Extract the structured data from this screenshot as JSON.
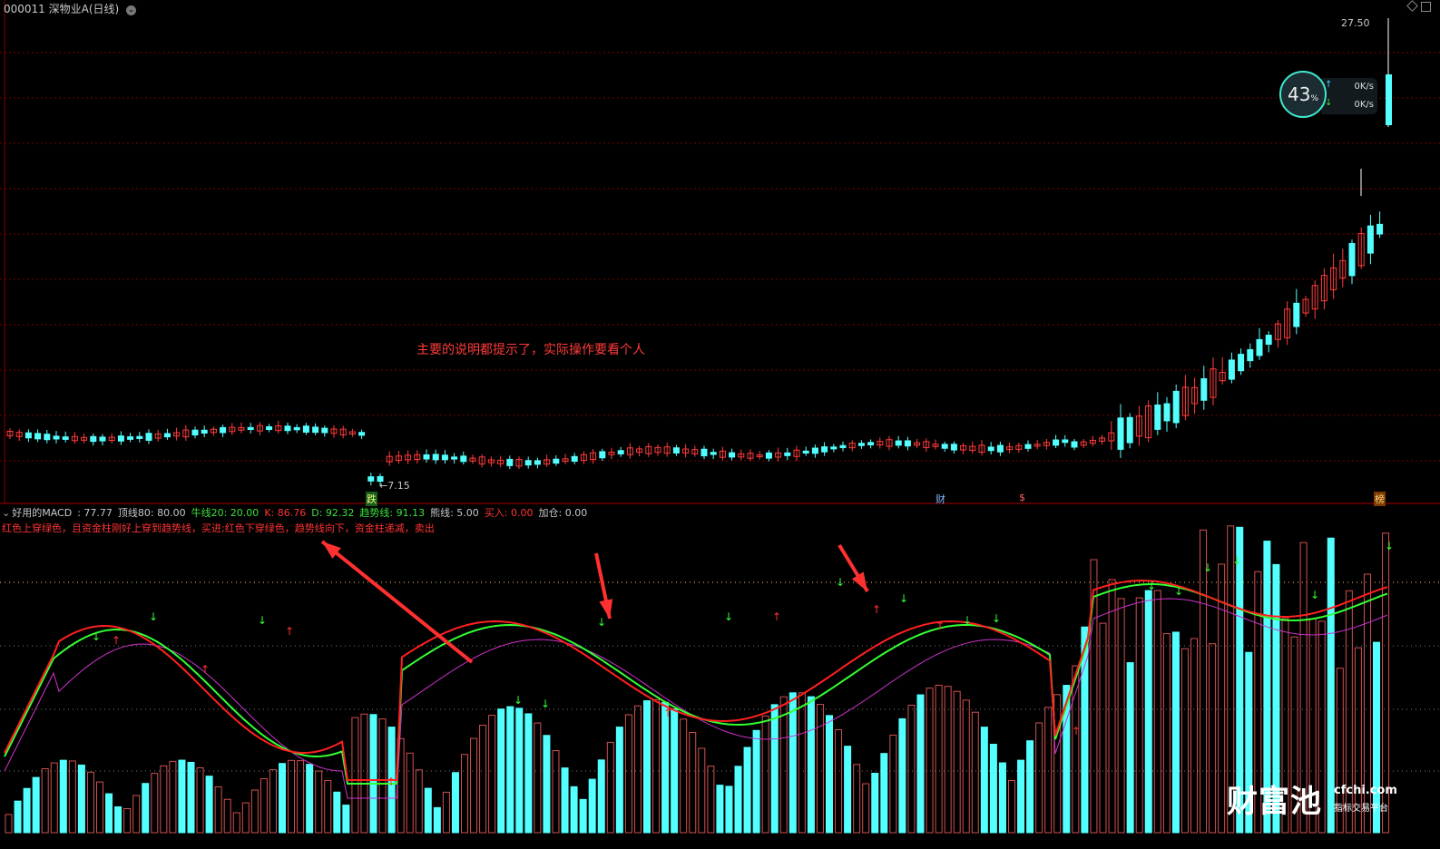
{
  "header": {
    "stock_code": "000011",
    "stock_name": "深物业A(日线)",
    "gear_icon": "chevron-down-icon"
  },
  "price_chart": {
    "high_label": "27.50",
    "low_label": "←7.15",
    "note": "主要的说明都提示了，实际操作要看个人",
    "markers": [
      "跌",
      "财",
      "$",
      "榜"
    ]
  },
  "indicator": {
    "name": "好用的MACD",
    "values": [
      {
        "label": ": 77.77",
        "color": "#c8c8c8"
      },
      {
        "label": "顶线80: 80.00",
        "color": "#c8c8c8"
      },
      {
        "label": "牛线20: 20.00",
        "color": "#3be03b"
      },
      {
        "label": "K: 86.76",
        "color": "#ff3333"
      },
      {
        "label": "D: 92.32",
        "color": "#3be03b"
      },
      {
        "label": "趋势线: 91.13",
        "color": "#3be03b"
      },
      {
        "label": "熊线: 5.00",
        "color": "#c8c8c8"
      },
      {
        "label": "买入: 0.00",
        "color": "#ff3333"
      },
      {
        "label": "加仓: 0.00",
        "color": "#c8c8c8"
      }
    ],
    "description": "红色上穿绿色，且资金柱刚好上穿到趋势线，买进;红色下穿绿色，趋势线向下，资金柱递减，卖出"
  },
  "speed_widget": {
    "percent": "43",
    "percent_unit": "%",
    "up_rate": "0K/s",
    "down_rate": "0K/s"
  },
  "watermark": {
    "brand": "财富池",
    "url": "cfchi.com",
    "tagline": "指标交易平台"
  },
  "colors": {
    "up": "#ff3b3b",
    "down": "#54ffff",
    "k_line": "#ff2020",
    "d_line": "#33ff33",
    "trend_line": "#cc33cc",
    "grid": "#7a0000"
  }
}
